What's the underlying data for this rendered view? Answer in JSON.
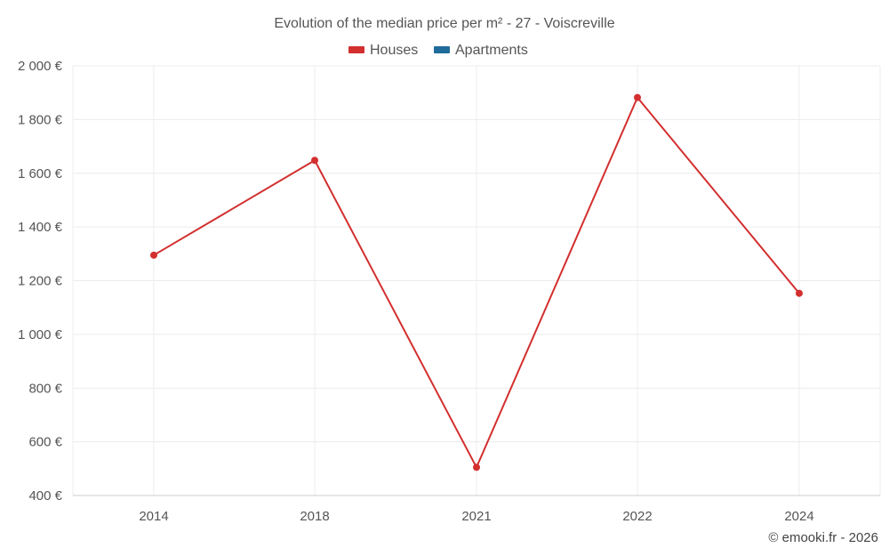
{
  "chart_data": {
    "type": "line",
    "title": "Evolution of the median price per m² - 27 - Voiscreville",
    "categories": [
      "2014",
      "2018",
      "2021",
      "2022",
      "2024"
    ],
    "series": [
      {
        "name": "Houses",
        "color": "#d32f2f",
        "values": [
          1295,
          1648,
          505,
          1882,
          1153
        ]
      },
      {
        "name": "Apartments",
        "color": "#1f6b9a",
        "values": [
          null,
          null,
          null,
          null,
          null
        ]
      }
    ],
    "ylim": [
      400,
      2000
    ],
    "yticks": [
      400,
      600,
      800,
      1000,
      1200,
      1400,
      1600,
      1800,
      2000
    ],
    "ytick_labels": [
      "400 €",
      "600 €",
      "800 €",
      "1 000 €",
      "1 200 €",
      "1 400 €",
      "1 600 €",
      "1 800 €",
      "2 000 €"
    ],
    "xlabel": "",
    "ylabel": "",
    "grid": true,
    "legend": "top-center"
  },
  "credit": "© emooki.fr - 2026"
}
